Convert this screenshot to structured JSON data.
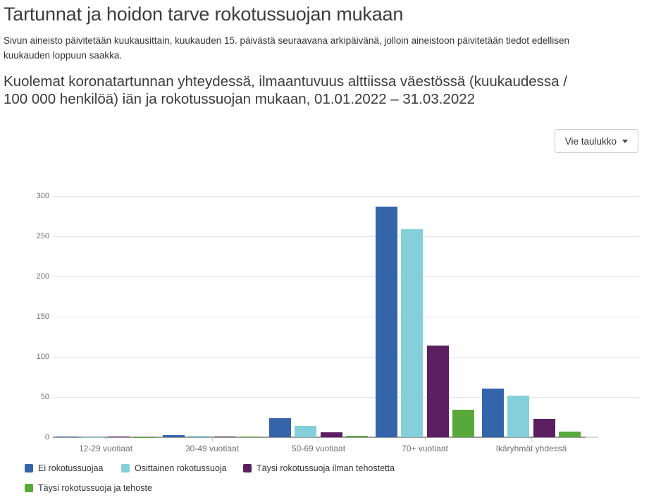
{
  "page": {
    "title": "Tartunnat ja hoidon tarve rokotussuojan mukaan",
    "description": "Sivun aineisto päivitetään kuukausittain, kuukauden 15. päivästä seuraavana arkipäivänä, jolloin aineistoon päivitetään tiedot edellisen kuukauden loppuun saakka."
  },
  "chart": {
    "title": "Kuolemat koronatartunnan yhteydessä, ilmaantuvuus alttiissa väestössä (kuukaudessa / 100 000 henkilöä) iän ja rokotussuojan mukaan, 01.01.2022 – 31.03.2022",
    "export_button": {
      "label": "Vie taulukko",
      "caret_icon": "chevron-down"
    }
  },
  "chart_data": {
    "type": "bar",
    "title": "Kuolemat koronatartunnan yhteydessä, ilmaantuvuus alttiissa väestössä (kuukaudessa / 100 000 henkilöä) iän ja rokotussuojan mukaan, 01.01.2022 – 31.03.2022",
    "categories": [
      "12-29 vuotiaat",
      "30-49 vuotiaat",
      "50-69 vuotiaat",
      "70+ vuotiaat",
      "Ikäryhmät yhdessä"
    ],
    "series": [
      {
        "name": "Ei rokotussuojaa",
        "color": "#3465ab",
        "values": [
          1,
          3,
          24,
          287,
          61
        ]
      },
      {
        "name": "Osittainen rokotussuoja",
        "color": "#85cfda",
        "values": [
          0.2,
          2,
          14,
          259,
          52
        ]
      },
      {
        "name": "Täysi rokotussuoja ilman tehostetta",
        "color": "#5b1f62",
        "values": [
          1,
          1,
          6,
          114,
          23
        ]
      },
      {
        "name": "Täysi rokotussuoja ja tehoste",
        "color": "#58a83c",
        "values": [
          0.2,
          1,
          2,
          34,
          7
        ]
      }
    ],
    "xlabel": "",
    "ylabel": "",
    "ylim": [
      0,
      300
    ],
    "yticks": [
      0,
      50,
      100,
      150,
      200,
      250,
      300
    ],
    "grid": true,
    "legend_position": "bottom-left"
  }
}
